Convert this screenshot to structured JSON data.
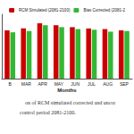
{
  "chart_data": {
    "type": "bar",
    "x_label": "Months",
    "categories": [
      "B",
      "MAR",
      "APR",
      "MAY",
      "JUN",
      "JUL",
      "AUG",
      "SEP"
    ],
    "series": [
      {
        "name": "RCM Simulated (2081-2100)",
        "color": "#cc0000",
        "values": [
          7.5,
          7.8,
          8.6,
          8.3,
          8.0,
          7.8,
          7.7,
          7.5
        ]
      },
      {
        "name": "Bias Corrected (2081-2",
        "color": "#33b833",
        "values": [
          7.2,
          7.4,
          8.3,
          8.0,
          7.7,
          7.6,
          7.3,
          7.4
        ]
      }
    ],
    "ylim": [
      0,
      10
    ],
    "tick_labels": "x",
    "grid": false,
    "legend": "top",
    "annotations": [
      "on of RCM simulated corrected and uncor",
      "control period 2081-2100."
    ]
  }
}
